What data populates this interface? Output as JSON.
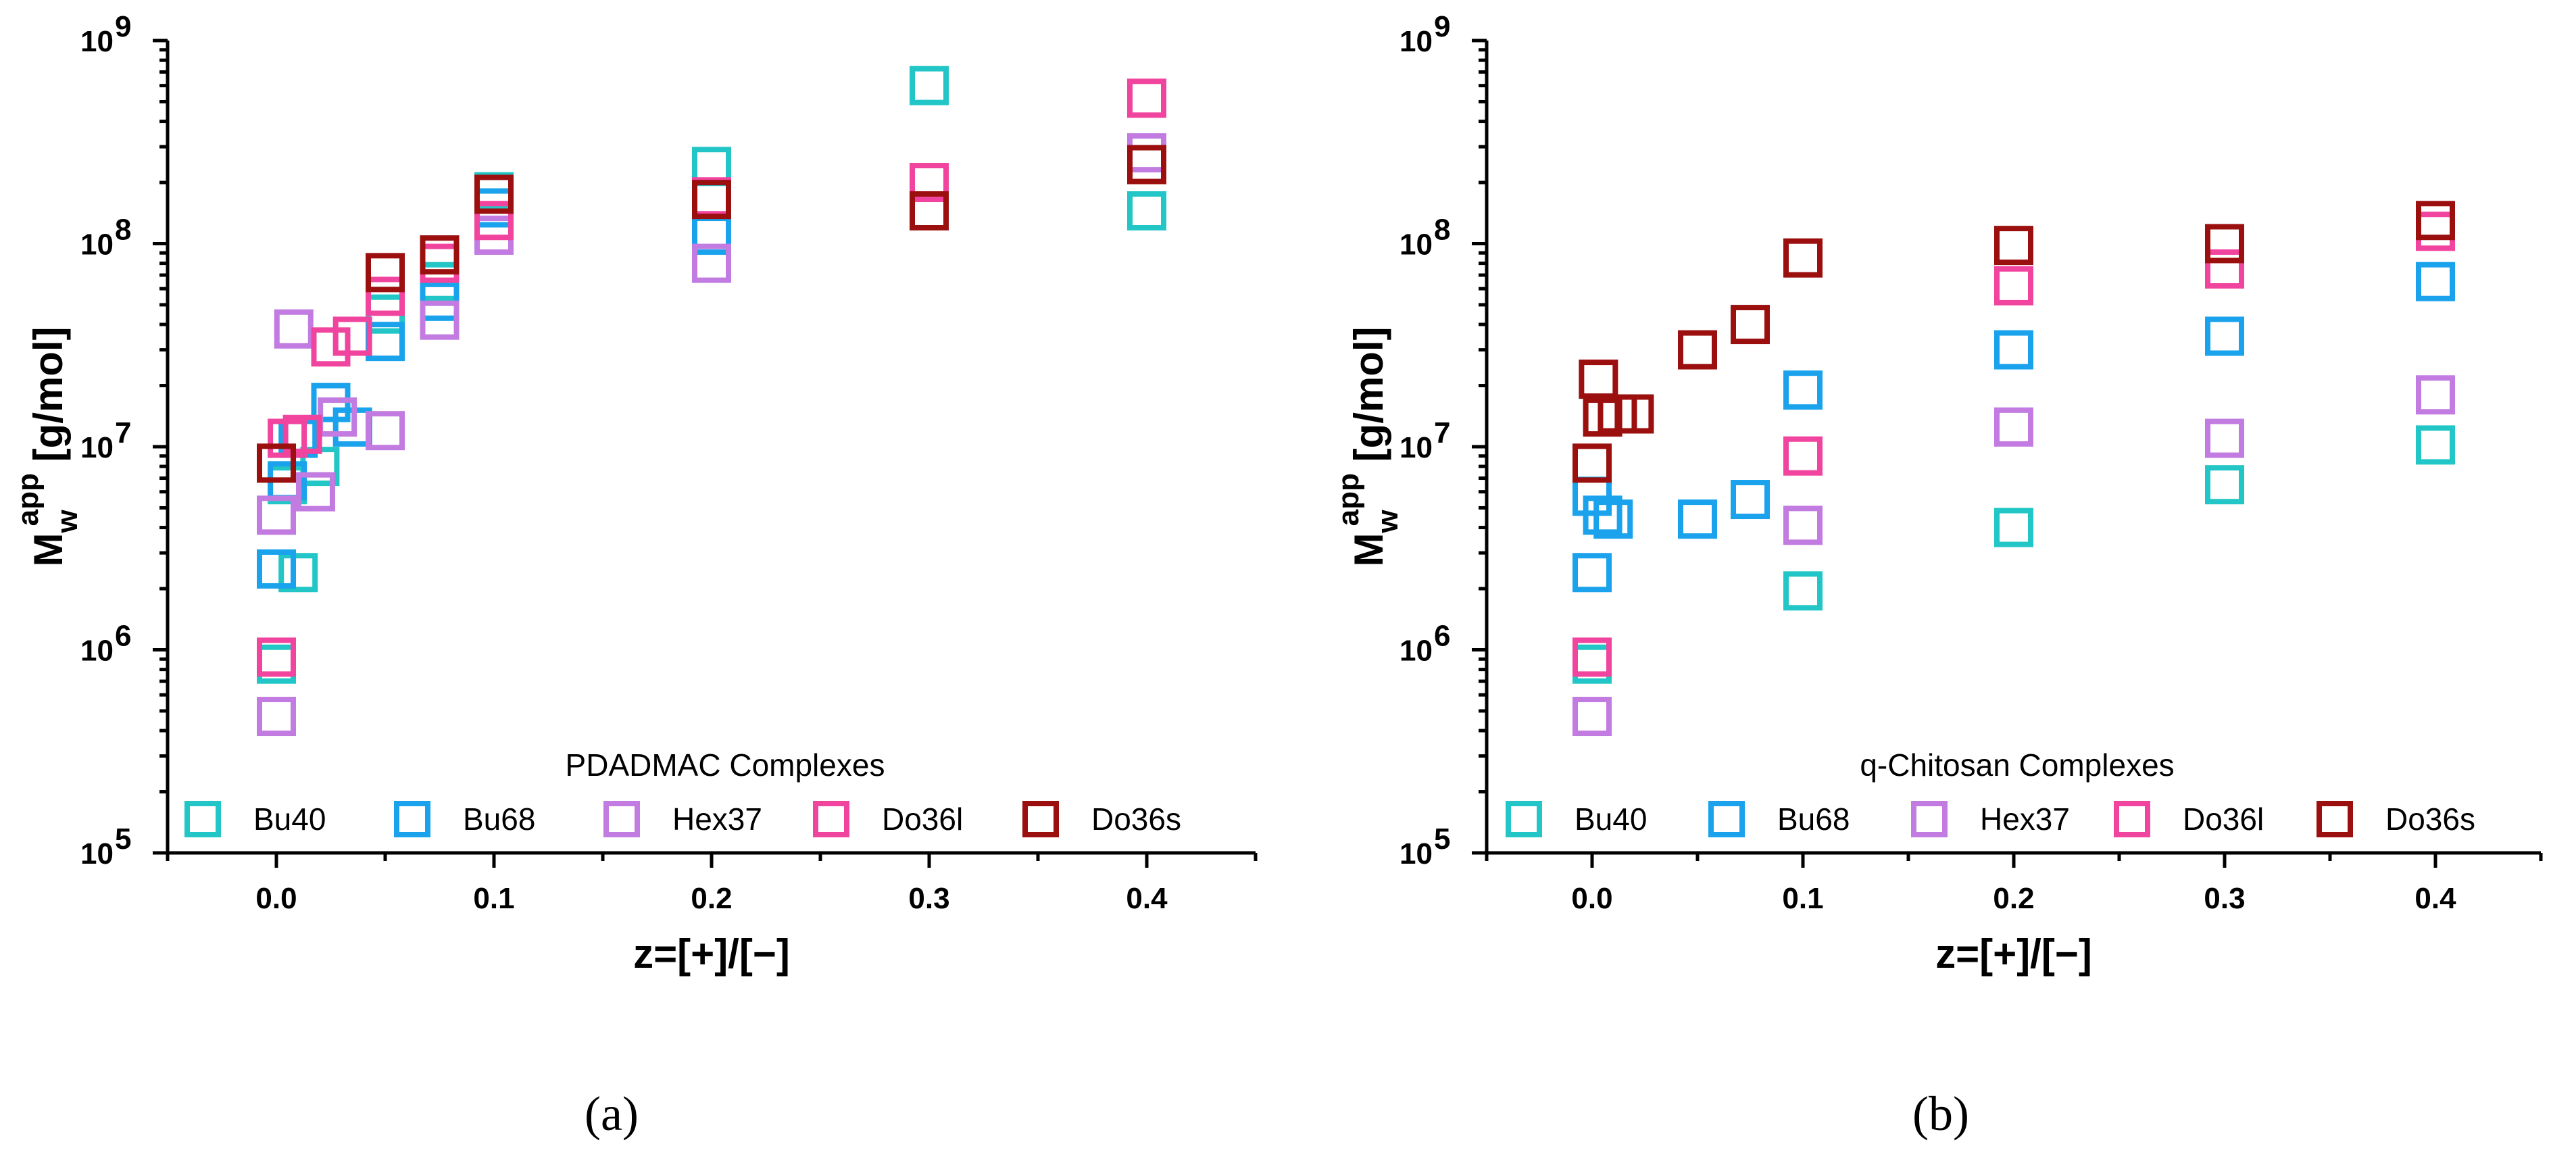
{
  "chart_data": [
    {
      "type": "scatter",
      "panel_label": "(a)",
      "xlabel": "z=[+]/[−]",
      "ylabel_main": "M",
      "ylabel_sub": "w",
      "ylabel_sup": "app",
      "ylabel_unit": " [g/mol]",
      "xlim": [
        -0.05,
        0.45
      ],
      "ylim": [
        100000,
        1000000000
      ],
      "yscale": "log",
      "x_ticks": [
        "0.0",
        "0.1",
        "0.2",
        "0.3",
        "0.4"
      ],
      "y_ticks": [
        "10",
        "10",
        "10",
        "10",
        "10"
      ],
      "y_tick_exponents": [
        "5",
        "6",
        "7",
        "8",
        "9"
      ],
      "legend_title": "PDADMAC Complexes",
      "legend_position": "bottom",
      "series": [
        {
          "name": "Bu40",
          "color": "#22c6c6",
          "points": [
            [
              0.0,
              850000
            ],
            [
              0.01,
              2400000
            ],
            [
              0.005,
              6500000
            ],
            [
              0.02,
              8000000
            ],
            [
              0.05,
              45000000
            ],
            [
              0.075,
              65000000
            ],
            [
              0.1,
              180000000
            ],
            [
              0.2,
              240000000
            ],
            [
              0.3,
              600000000
            ],
            [
              0.4,
              145000000
            ]
          ]
        },
        {
          "name": "Bu68",
          "color": "#1aa3ec",
          "points": [
            [
              0.0,
              2500000
            ],
            [
              0.005,
              6800000
            ],
            [
              0.01,
              11000000
            ],
            [
              0.025,
              16500000
            ],
            [
              0.035,
              12500000
            ],
            [
              0.05,
              33000000
            ],
            [
              0.075,
              52000000
            ],
            [
              0.1,
              150000000
            ],
            [
              0.2,
              110000000
            ]
          ]
        },
        {
          "name": "Hex37",
          "color": "#c27be0",
          "points": [
            [
              0.0,
              470000
            ],
            [
              0.0,
              4600000
            ],
            [
              0.008,
              38000000
            ],
            [
              0.018,
              6000000
            ],
            [
              0.028,
              14000000
            ],
            [
              0.05,
              12000000
            ],
            [
              0.075,
              42000000
            ],
            [
              0.1,
              110000000
            ],
            [
              0.2,
              80000000
            ],
            [
              0.4,
              280000000
            ]
          ]
        },
        {
          "name": "Do36l",
          "color": "#f0449e",
          "points": [
            [
              0.0,
              920000
            ],
            [
              0.005,
              11000000
            ],
            [
              0.012,
              11500000
            ],
            [
              0.025,
              31000000
            ],
            [
              0.035,
              35000000
            ],
            [
              0.05,
              55000000
            ],
            [
              0.075,
              80000000
            ],
            [
              0.1,
              130000000
            ],
            [
              0.2,
              170000000
            ],
            [
              0.3,
              200000000
            ],
            [
              0.4,
              520000000
            ]
          ]
        },
        {
          "name": "Do36s",
          "color": "#9b0f0f",
          "points": [
            [
              0.0,
              8300000
            ],
            [
              0.05,
              72000000
            ],
            [
              0.075,
              88000000
            ],
            [
              0.1,
              175000000
            ],
            [
              0.2,
              165000000
            ],
            [
              0.3,
              145000000
            ],
            [
              0.4,
              245000000
            ]
          ]
        }
      ]
    },
    {
      "type": "scatter",
      "panel_label": "(b)",
      "xlabel": "z=[+]/[−]",
      "ylabel_main": "M",
      "ylabel_sub": "w",
      "ylabel_sup": "app",
      "ylabel_unit": " [g/mol]",
      "xlim": [
        -0.05,
        0.45
      ],
      "ylim": [
        100000,
        1000000000
      ],
      "yscale": "log",
      "x_ticks": [
        "0.0",
        "0.1",
        "0.2",
        "0.3",
        "0.4"
      ],
      "y_ticks": [
        "10",
        "10",
        "10",
        "10",
        "10"
      ],
      "y_tick_exponents": [
        "5",
        "6",
        "7",
        "8",
        "9"
      ],
      "legend_title": "q-Chitosan Complexes",
      "legend_position": "bottom",
      "series": [
        {
          "name": "Bu40",
          "color": "#22c6c6",
          "points": [
            [
              0.0,
              850000
            ],
            [
              0.1,
              1950000
            ],
            [
              0.2,
              4000000
            ],
            [
              0.3,
              6500000
            ],
            [
              0.4,
              10200000
            ]
          ]
        },
        {
          "name": "Bu68",
          "color": "#1aa3ec",
          "points": [
            [
              0.0,
              2400000
            ],
            [
              0.0,
              5700000
            ],
            [
              0.005,
              4600000
            ],
            [
              0.01,
              4400000
            ],
            [
              0.05,
              4400000
            ],
            [
              0.075,
              5500000
            ],
            [
              0.1,
              19000000
            ],
            [
              0.2,
              30000000
            ],
            [
              0.3,
              35000000
            ],
            [
              0.4,
              65000000
            ]
          ]
        },
        {
          "name": "Hex37",
          "color": "#c27be0",
          "points": [
            [
              0.0,
              470000
            ],
            [
              0.1,
              4100000
            ],
            [
              0.2,
              12500000
            ],
            [
              0.3,
              11000000
            ],
            [
              0.4,
              18000000
            ]
          ]
        },
        {
          "name": "Do36l",
          "color": "#f0449e",
          "points": [
            [
              0.0,
              920000
            ],
            [
              0.1,
              9000000
            ],
            [
              0.2,
              62000000
            ],
            [
              0.3,
              75000000
            ],
            [
              0.4,
              115000000
            ]
          ]
        },
        {
          "name": "Do36s",
          "color": "#9b0f0f",
          "points": [
            [
              0.0,
              8300000
            ],
            [
              0.003,
              21500000
            ],
            [
              0.005,
              14000000
            ],
            [
              0.012,
              14500000
            ],
            [
              0.02,
              14500000
            ],
            [
              0.05,
              30000000
            ],
            [
              0.075,
              40000000
            ],
            [
              0.1,
              85000000
            ],
            [
              0.2,
              98000000
            ],
            [
              0.3,
              100000000
            ],
            [
              0.4,
              130000000
            ]
          ]
        }
      ]
    }
  ]
}
